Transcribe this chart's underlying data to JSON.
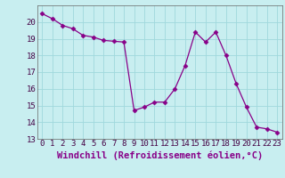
{
  "x": [
    0,
    1,
    2,
    3,
    4,
    5,
    6,
    7,
    8,
    9,
    10,
    11,
    12,
    13,
    14,
    15,
    16,
    17,
    18,
    19,
    20,
    21,
    22,
    23
  ],
  "y": [
    20.5,
    20.2,
    19.8,
    19.6,
    19.2,
    19.1,
    18.9,
    18.85,
    18.8,
    14.7,
    14.9,
    15.2,
    15.2,
    16.0,
    17.4,
    19.4,
    18.8,
    19.4,
    18.0,
    16.3,
    14.9,
    13.7,
    13.6,
    13.4
  ],
  "line_color": "#880088",
  "marker": "D",
  "marker_size": 2.5,
  "bg_color": "#c8eef0",
  "grid_color": "#a0d8dc",
  "xlabel": "Windchill (Refroidissement éolien,°C)",
  "xlabel_fontsize": 7.5,
  "ylim": [
    13,
    21
  ],
  "xlim": [
    -0.5,
    23.5
  ],
  "yticks": [
    13,
    14,
    15,
    16,
    17,
    18,
    19,
    20
  ],
  "xticks": [
    0,
    1,
    2,
    3,
    4,
    5,
    6,
    7,
    8,
    9,
    10,
    11,
    12,
    13,
    14,
    15,
    16,
    17,
    18,
    19,
    20,
    21,
    22,
    23
  ],
  "tick_fontsize": 6.5
}
